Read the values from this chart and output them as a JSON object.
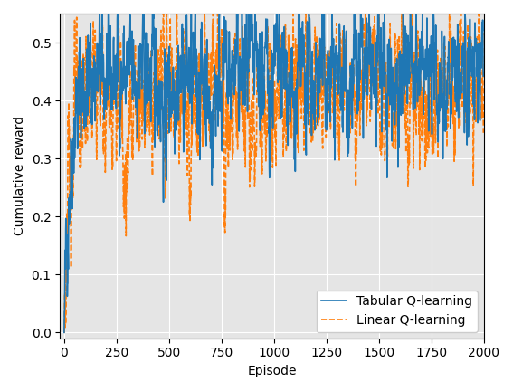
{
  "title": "",
  "xlabel": "Episode",
  "ylabel": "Cumulative reward",
  "xlim": [
    -20,
    2000
  ],
  "ylim": [
    -0.01,
    0.55
  ],
  "yticks": [
    0.0,
    0.1,
    0.2,
    0.3,
    0.4,
    0.5
  ],
  "xticks": [
    0,
    250,
    500,
    750,
    1000,
    1250,
    1500,
    1750,
    2000
  ],
  "tabular_color": "#1f77b4",
  "linear_color": "#ff7f0e",
  "tabular_label": "Tabular Q-learning",
  "linear_label": "Linear Q-learning",
  "tabular_linestyle": "-",
  "linear_linestyle": "--",
  "linewidth": 1.2,
  "legend_loc": "lower right",
  "n_episodes": 2000,
  "figsize": [
    5.67,
    4.32
  ],
  "dpi": 100
}
